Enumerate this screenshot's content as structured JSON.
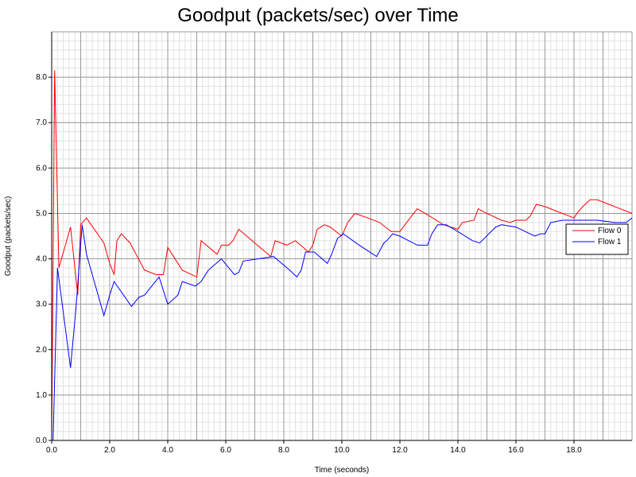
{
  "chart_data": {
    "type": "line",
    "title": "Goodput (packets/sec) over Time",
    "xlabel": "Time (seconds)",
    "ylabel": "Goodput (packets/sec)",
    "xlim": [
      0,
      20
    ],
    "ylim": [
      0,
      9
    ],
    "x_ticks": [
      "0.0",
      "2.0",
      "4.0",
      "6.0",
      "8.0",
      "10.0",
      "12.0",
      "14.0",
      "16.0",
      "18.0"
    ],
    "x_tick_values": [
      0,
      2,
      4,
      6,
      8,
      10,
      12,
      14,
      16,
      18
    ],
    "y_ticks": [
      "0.0",
      "1.0",
      "2.0",
      "3.0",
      "4.0",
      "5.0",
      "6.0",
      "7.0",
      "8.0"
    ],
    "y_tick_values": [
      0,
      1,
      2,
      3,
      4,
      5,
      6,
      7,
      8
    ],
    "grid": true,
    "legend_position": "right",
    "series": [
      {
        "name": "Flow 0",
        "color": "#ff0000",
        "points": [
          [
            0.0,
            0.0
          ],
          [
            0.1,
            8.15
          ],
          [
            0.25,
            3.8
          ],
          [
            0.65,
            4.7
          ],
          [
            0.9,
            3.2
          ],
          [
            1.0,
            4.75
          ],
          [
            1.2,
            4.9
          ],
          [
            1.8,
            4.35
          ],
          [
            2.0,
            3.9
          ],
          [
            2.15,
            3.65
          ],
          [
            2.25,
            4.4
          ],
          [
            2.4,
            4.55
          ],
          [
            2.7,
            4.35
          ],
          [
            3.2,
            3.75
          ],
          [
            3.6,
            3.65
          ],
          [
            3.85,
            3.65
          ],
          [
            4.0,
            4.25
          ],
          [
            4.35,
            3.9
          ],
          [
            4.5,
            3.75
          ],
          [
            5.0,
            3.6
          ],
          [
            5.15,
            4.4
          ],
          [
            5.7,
            4.1
          ],
          [
            5.85,
            4.3
          ],
          [
            6.1,
            4.3
          ],
          [
            6.25,
            4.4
          ],
          [
            6.45,
            4.65
          ],
          [
            7.0,
            4.35
          ],
          [
            7.55,
            4.05
          ],
          [
            7.7,
            4.4
          ],
          [
            8.1,
            4.3
          ],
          [
            8.4,
            4.4
          ],
          [
            8.85,
            4.15
          ],
          [
            9.0,
            4.3
          ],
          [
            9.15,
            4.65
          ],
          [
            9.4,
            4.75
          ],
          [
            9.6,
            4.7
          ],
          [
            10.0,
            4.5
          ],
          [
            10.2,
            4.8
          ],
          [
            10.45,
            5.0
          ],
          [
            10.9,
            4.9
          ],
          [
            11.3,
            4.8
          ],
          [
            11.7,
            4.6
          ],
          [
            12.0,
            4.6
          ],
          [
            12.35,
            4.9
          ],
          [
            12.6,
            5.1
          ],
          [
            13.0,
            4.95
          ],
          [
            13.5,
            4.75
          ],
          [
            14.0,
            4.65
          ],
          [
            14.15,
            4.8
          ],
          [
            14.55,
            4.85
          ],
          [
            14.7,
            5.1
          ],
          [
            15.0,
            5.0
          ],
          [
            15.5,
            4.85
          ],
          [
            15.8,
            4.8
          ],
          [
            16.0,
            4.85
          ],
          [
            16.35,
            4.85
          ],
          [
            16.5,
            4.95
          ],
          [
            16.7,
            5.2
          ],
          [
            17.0,
            5.15
          ],
          [
            17.4,
            5.05
          ],
          [
            17.8,
            4.95
          ],
          [
            18.0,
            4.9
          ],
          [
            18.1,
            5.0
          ],
          [
            18.3,
            5.15
          ],
          [
            18.55,
            5.3
          ],
          [
            18.8,
            5.3
          ],
          [
            19.2,
            5.2
          ],
          [
            19.6,
            5.1
          ],
          [
            20.0,
            5.0
          ]
        ]
      },
      {
        "name": "Flow 1",
        "color": "#0000ff",
        "points": [
          [
            0.05,
            0.0
          ],
          [
            0.2,
            3.8
          ],
          [
            0.65,
            1.6
          ],
          [
            0.85,
            3.0
          ],
          [
            1.05,
            4.75
          ],
          [
            1.2,
            4.1
          ],
          [
            1.8,
            2.75
          ],
          [
            2.0,
            3.2
          ],
          [
            2.15,
            3.5
          ],
          [
            2.75,
            2.95
          ],
          [
            3.0,
            3.15
          ],
          [
            3.2,
            3.2
          ],
          [
            3.7,
            3.6
          ],
          [
            4.0,
            3.0
          ],
          [
            4.35,
            3.2
          ],
          [
            4.5,
            3.5
          ],
          [
            4.95,
            3.4
          ],
          [
            5.15,
            3.5
          ],
          [
            5.4,
            3.75
          ],
          [
            5.85,
            4.0
          ],
          [
            6.3,
            3.65
          ],
          [
            6.45,
            3.7
          ],
          [
            6.6,
            3.95
          ],
          [
            7.65,
            4.05
          ],
          [
            8.2,
            3.75
          ],
          [
            8.45,
            3.6
          ],
          [
            8.6,
            3.75
          ],
          [
            8.75,
            4.15
          ],
          [
            9.05,
            4.15
          ],
          [
            9.5,
            3.9
          ],
          [
            9.65,
            4.1
          ],
          [
            9.85,
            4.45
          ],
          [
            10.05,
            4.55
          ],
          [
            10.6,
            4.3
          ],
          [
            11.2,
            4.05
          ],
          [
            11.45,
            4.35
          ],
          [
            11.55,
            4.4
          ],
          [
            11.75,
            4.55
          ],
          [
            12.0,
            4.5
          ],
          [
            12.6,
            4.3
          ],
          [
            12.95,
            4.3
          ],
          [
            13.1,
            4.55
          ],
          [
            13.3,
            4.75
          ],
          [
            13.6,
            4.75
          ],
          [
            14.0,
            4.6
          ],
          [
            14.5,
            4.4
          ],
          [
            14.75,
            4.35
          ],
          [
            15.3,
            4.7
          ],
          [
            15.5,
            4.75
          ],
          [
            16.0,
            4.7
          ],
          [
            16.65,
            4.5
          ],
          [
            16.85,
            4.55
          ],
          [
            17.0,
            4.55
          ],
          [
            17.2,
            4.8
          ],
          [
            17.6,
            4.85
          ],
          [
            18.0,
            4.85
          ],
          [
            18.8,
            4.85
          ],
          [
            19.4,
            4.8
          ],
          [
            19.8,
            4.8
          ],
          [
            20.0,
            4.9
          ]
        ]
      }
    ]
  }
}
